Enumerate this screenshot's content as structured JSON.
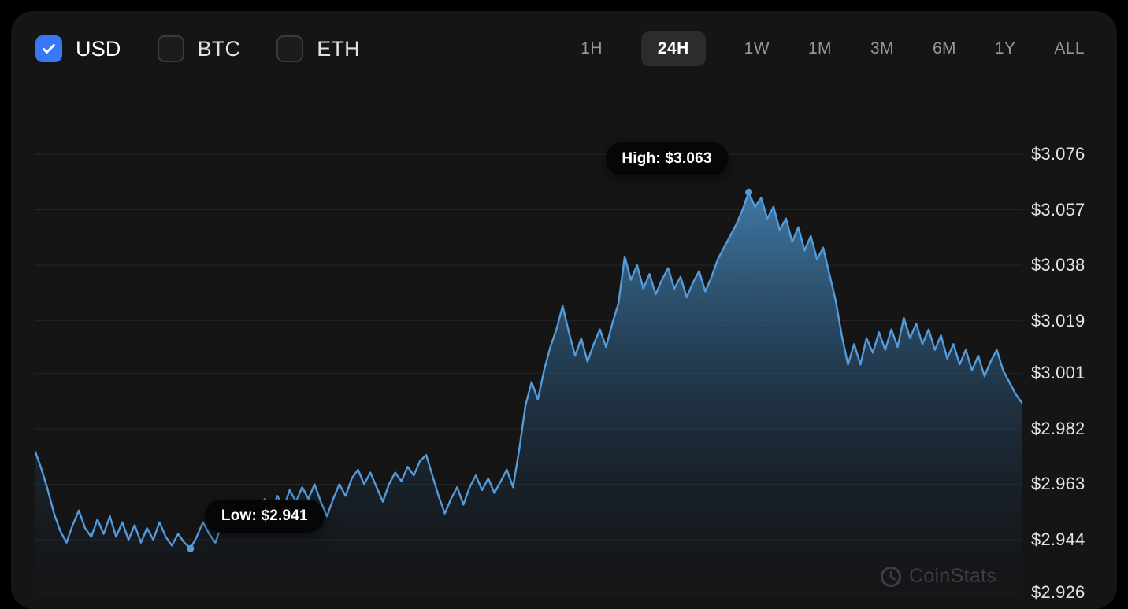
{
  "header": {
    "currencies": [
      {
        "label": "USD",
        "checked": true
      },
      {
        "label": "BTC",
        "checked": false
      },
      {
        "label": "ETH",
        "checked": false
      }
    ],
    "ranges": [
      {
        "label": "1H",
        "selected": false
      },
      {
        "label": "24H",
        "selected": true
      },
      {
        "label": "1W",
        "selected": false
      },
      {
        "label": "1M",
        "selected": false
      },
      {
        "label": "3M",
        "selected": false
      },
      {
        "label": "6M",
        "selected": false
      },
      {
        "label": "1Y",
        "selected": false
      },
      {
        "label": "ALL",
        "selected": false
      }
    ],
    "accent_blue": "#3878f4"
  },
  "chart_data": {
    "type": "area",
    "title": "",
    "selected_range": "24H",
    "currency": "USD",
    "line_color": "#549bdc",
    "ylim": [
      2.926,
      3.085
    ],
    "y_tick_values": [
      3.076,
      3.057,
      3.038,
      3.019,
      3.001,
      2.982,
      2.963,
      2.944,
      2.926
    ],
    "y_tick_labels": [
      "$3.076",
      "$3.057",
      "$3.038",
      "$3.019",
      "$3.001",
      "$2.982",
      "$2.963",
      "$2.944",
      "$2.926"
    ],
    "grid": true,
    "legend": false,
    "values": [
      2.974,
      2.968,
      2.961,
      2.953,
      2.947,
      2.943,
      2.949,
      2.954,
      2.948,
      2.945,
      2.951,
      2.946,
      2.952,
      2.945,
      2.95,
      2.944,
      2.949,
      2.943,
      2.948,
      2.944,
      2.95,
      2.945,
      2.942,
      2.946,
      2.943,
      2.941,
      2.945,
      2.95,
      2.946,
      2.943,
      2.949,
      2.953,
      2.948,
      2.952,
      2.947,
      2.951,
      2.955,
      2.958,
      2.953,
      2.959,
      2.955,
      2.961,
      2.957,
      2.962,
      2.958,
      2.963,
      2.957,
      2.952,
      2.958,
      2.963,
      2.959,
      2.965,
      2.968,
      2.963,
      2.967,
      2.962,
      2.957,
      2.963,
      2.967,
      2.964,
      2.969,
      2.966,
      2.971,
      2.973,
      2.966,
      2.959,
      2.953,
      2.958,
      2.962,
      2.956,
      2.962,
      2.966,
      2.961,
      2.965,
      2.96,
      2.964,
      2.968,
      2.962,
      2.975,
      2.99,
      2.998,
      2.992,
      3.002,
      3.01,
      3.016,
      3.024,
      3.015,
      3.007,
      3.013,
      3.005,
      3.011,
      3.016,
      3.01,
      3.018,
      3.025,
      3.041,
      3.033,
      3.038,
      3.03,
      3.035,
      3.028,
      3.033,
      3.037,
      3.03,
      3.034,
      3.027,
      3.032,
      3.036,
      3.029,
      3.034,
      3.04,
      3.044,
      3.048,
      3.052,
      3.057,
      3.063,
      3.058,
      3.061,
      3.054,
      3.058,
      3.05,
      3.054,
      3.046,
      3.051,
      3.043,
      3.048,
      3.04,
      3.044,
      3.035,
      3.026,
      3.014,
      3.004,
      3.011,
      3.004,
      3.013,
      3.008,
      3.015,
      3.009,
      3.016,
      3.01,
      3.02,
      3.013,
      3.018,
      3.011,
      3.016,
      3.009,
      3.014,
      3.006,
      3.011,
      3.004,
      3.009,
      3.002,
      3.007,
      3.0,
      3.005,
      3.009,
      3.002,
      2.998,
      2.994,
      2.991
    ],
    "annotations": {
      "high": {
        "label": "High: $3.063",
        "value": 3.063,
        "index": 115
      },
      "low": {
        "label": "Low: $2.941",
        "value": 2.941,
        "index": 25
      }
    }
  },
  "watermark": {
    "label": "CoinStats"
  }
}
